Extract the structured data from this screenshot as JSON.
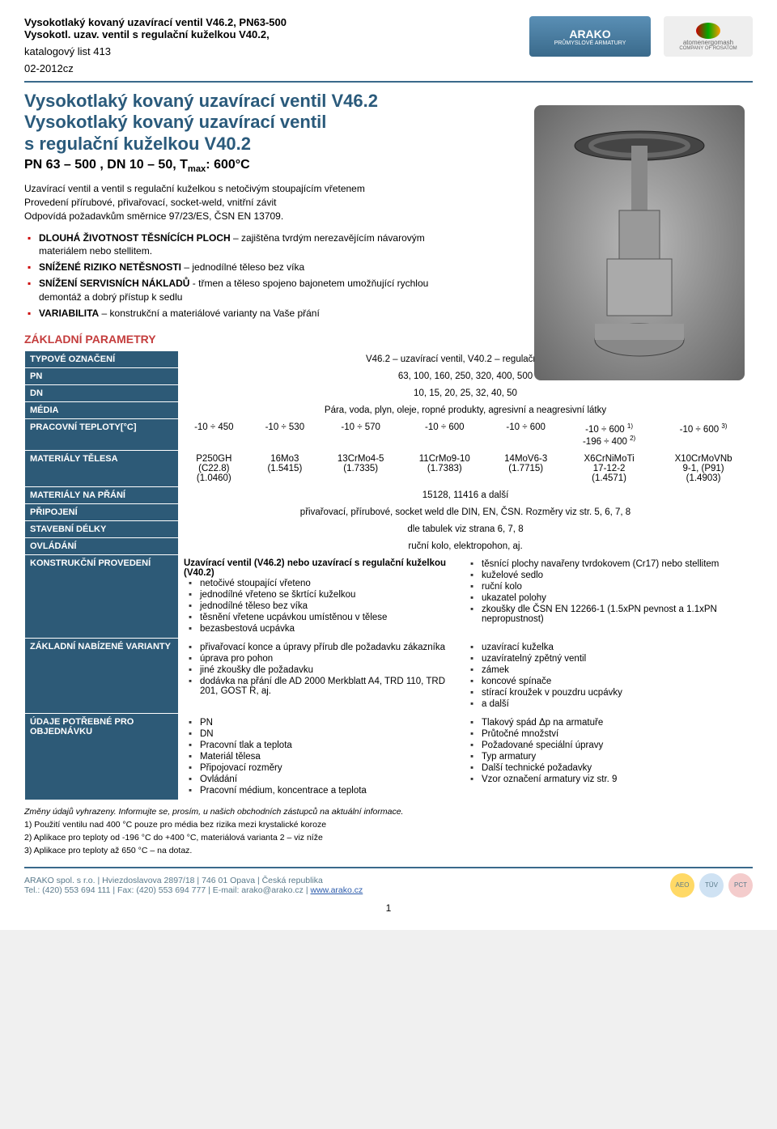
{
  "header": {
    "line1": "Vysokotlaký kovaný uzavírací ventil V46.2, PN63-500",
    "line2": "Vysokotl. uzav. ventil s regulační kuželkou V40.2,",
    "catalog": "katalogový list 413",
    "code": "02-2012cz",
    "logo_arako_text": "ARAKO",
    "logo_arako_sub": "PRŮMYSLOVÉ ARMATURY",
    "logo_atom_text": "atomenergomash",
    "logo_atom_sub": "COMPANY OF ROSATOM"
  },
  "title": {
    "l1": "Vysokotlaký kovaný uzavírací ventil  V46.2",
    "l2": "Vysokotlaký kovaný uzavírací ventil",
    "l3": "s regulační kuželkou  V40.2",
    "spec": "PN 63 – 500 , DN 10 – 50, Tₘₐₓ: 600°C"
  },
  "intro": {
    "p1": "Uzavírací ventil a ventil s regulační kuželkou s netočivým stoupajícím vřetenem",
    "p2": "Provedení přírubové, přivařovací, socket-weld, vnitřní závit",
    "p3": "Odpovídá požadavkům směrnice 97/23/ES, ČSN EN 13709."
  },
  "features": [
    {
      "bold": "DLOUHÁ ŽIVOTNOST TĚSNÍCÍCH PLOCH",
      "rest": " – zajištěna tvrdým nerezavějícím návarovým materiálem nebo stellitem."
    },
    {
      "bold": "SNÍŽENÉ RIZIKO NETĚSNOSTI",
      "rest": " – jednodílné těleso bez víka"
    },
    {
      "bold": "SNÍŽENÍ SERVISNÍCH NÁKLADŮ",
      "rest": " - třmen a těleso spojeno bajonetem umožňující rychlou demontáž a dobrý přístup k sedlu"
    },
    {
      "bold": "VARIABILITA",
      "rest": " – konstrukční a materiálové varianty na Vaše přání"
    }
  ],
  "section_title": "ZÁKLADNÍ PARAMETRY",
  "params": {
    "rows": [
      {
        "label": "TYPOVÉ OZNAČENÍ",
        "value": "V46.2 – uzavírací ventil, V40.2 – regulační ventil"
      },
      {
        "label": "PN",
        "value": "63, 100, 160, 250, 320, 400, 500"
      },
      {
        "label": "DN",
        "value": "10, 15, 20, 25, 32, 40, 50"
      },
      {
        "label": "MÉDIA",
        "value": "Pára, voda, plyn, oleje, ropné produkty, agresivní a neagresivní látky"
      }
    ],
    "temps_label": "PRACOVNÍ TEPLOTY[°C]",
    "temps": [
      "-10 ÷ 450",
      "-10 ÷ 530",
      "-10 ÷ 570",
      "-10 ÷ 600",
      "-10 ÷ 600",
      "-10 ÷ 600 ¹⁾\n-196 ÷ 400 ²⁾",
      "-10 ÷ 600 ³⁾"
    ],
    "mat_label": "MATERIÁLY TĚLESA",
    "mats": [
      "P250GH\n(C22.8)\n(1.0460)",
      "16Mo3\n(1.5415)",
      "13CrMo4-5\n(1.7335)",
      "11CrMo9-10\n(1.7383)",
      "14MoV6-3\n(1.7715)",
      "X6CrNiMoTi\n17-12-2\n(1.4571)",
      "X10CrMoVNb\n9-1, (P91)\n(1.4903)"
    ],
    "simple": [
      {
        "label": "MATERIÁLY NA PŘÁNÍ",
        "value": "15128, 11416 a další"
      },
      {
        "label": "PŘIPOJENÍ",
        "value": "přivařovací, přírubové, socket weld dle DIN, EN, ČSN. Rozměry viz str. 5, 6, 7, 8"
      },
      {
        "label": "STAVEBNÍ DÉLKY",
        "value": "dle tabulek viz strana  6, 7, 8"
      },
      {
        "label": "OVLÁDÁNÍ",
        "value": "ruční kolo, elektropohon, aj."
      }
    ],
    "konstr": {
      "label": "KONSTRUKČNÍ PROVEDENÍ",
      "left_head": "Uzavírací ventil (V46.2) nebo uzavírací s regulační kuželkou (V40.2)",
      "left": [
        "netočivé stoupající vřeteno",
        "jednodílné vřeteno se škrtící kuželkou",
        "jednodílné těleso bez víka",
        "těsnění vřetene ucpávkou umístěnou v tělese",
        "bezasbestová ucpávka"
      ],
      "right": [
        "těsnící plochy navařeny tvrdokovem (Cr17) nebo stellitem",
        "kuželové sedlo",
        "ruční kolo",
        "ukazatel polohy",
        "zkoušky dle ČSN EN 12266-1 (1.5xPN pevnost a 1.1xPN nepropustnost)"
      ]
    },
    "varianty": {
      "label": "ZÁKLADNÍ NABÍZENÉ VARIANTY",
      "left": [
        "přivařovací konce a úpravy přírub dle požadavku zákazníka",
        "úprava pro pohon",
        "jiné zkoušky dle požadavku",
        "dodávka na přání dle AD 2000 Merkblatt A4, TRD 110, TRD 201, GOST R, aj."
      ],
      "right": [
        "uzavírací kuželka",
        "uzavíratelný zpětný ventil",
        "zámek",
        "koncové spínače",
        "stírací kroužek v pouzdru ucpávky",
        "a další"
      ]
    },
    "udaje": {
      "label": "ÚDAJE POTŘEBNÉ PRO OBJEDNÁVKU",
      "left": [
        "PN",
        "DN",
        "Pracovní tlak a teplota",
        "Materiál tělesa",
        "Připojovací rozměry",
        "Ovládání",
        "Pracovní médium, koncentrace a teplota"
      ],
      "right": [
        "Tlakový spád Δp na armatuře",
        "Průtočné množství",
        "Požadované speciální úpravy",
        "Typ armatury",
        "Další technické požadavky",
        "Vzor označení armatury viz str. 9"
      ]
    }
  },
  "notes": {
    "change": "Změny údajů vyhrazeny. Informujte se, prosím, u našich obchodních zástupců na aktuální informace.",
    "n1": "1) Použití ventilu nad 400 °C pouze pro média bez rizika mezi krystalické koroze",
    "n2": "2) Aplikace pro teploty od -196 °C do +400 °C, materiálová varianta 2 – viz níže",
    "n3": "3) Aplikace pro teploty až 650 °C – na dotaz."
  },
  "footer": {
    "company": "ARAKO spol. s r.o.  |  Hviezdoslavova 2897/18  |  746 01 Opava  |  Česká republika",
    "tel": "Tel.: (420) 553 694 111 | Fax: (420) 553 694 777 | E-mail: arako@arako.cz | ",
    "link": "www.arako.cz",
    "page": "1"
  },
  "colors": {
    "header_blue": "#2d5a77",
    "title_blue": "#2a5a7b",
    "red": "#c43d3d"
  }
}
